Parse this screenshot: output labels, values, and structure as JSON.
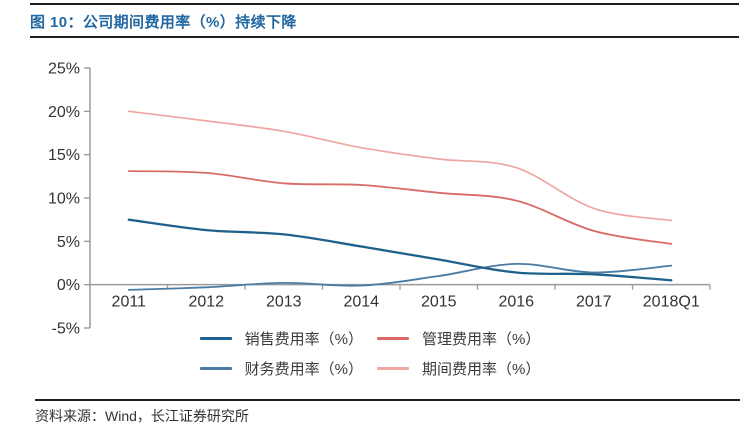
{
  "figure": {
    "title": "图 10：公司期间费用率（%）持续下降",
    "source": "资料来源：Wind，长江证券研究所"
  },
  "colors": {
    "title_blue": "#2368A2",
    "selling_blue": "#1F618C",
    "admin_red": "#D96A66",
    "finance_blue": "#4B7BA3",
    "period_pink": "#EEA7A3",
    "axis_gray": "#9A9A9A",
    "label_text": "#333333",
    "rule_dark": "#1F1F1F"
  },
  "chart_data": {
    "type": "line",
    "title": "公司期间费用率（%）持续下降",
    "categories": [
      "2011",
      "2012",
      "2013",
      "2014",
      "2015",
      "2016",
      "2017",
      "2018Q1"
    ],
    "series": [
      {
        "key": "selling",
        "name": "销售费用率（%）",
        "color": "#1F618C",
        "values": [
          7.5,
          6.3,
          5.8,
          4.4,
          2.9,
          1.4,
          1.2,
          0.5
        ]
      },
      {
        "key": "admin",
        "name": "管理费用率（%）",
        "color": "#D96A66",
        "values": [
          13.1,
          12.9,
          11.7,
          11.5,
          10.6,
          9.7,
          6.2,
          4.7
        ]
      },
      {
        "key": "finance",
        "name": "财务费用率（%）",
        "color": "#4B7BA3",
        "values": [
          -0.6,
          -0.3,
          0.2,
          -0.1,
          1.0,
          2.4,
          1.4,
          2.2
        ]
      },
      {
        "key": "period",
        "name": "期间费用率（%）",
        "color": "#EEA7A3",
        "values": [
          20.0,
          18.9,
          17.7,
          15.8,
          14.5,
          13.5,
          8.8,
          7.4
        ]
      }
    ],
    "xlabel": "",
    "ylabel": "",
    "ylim": [
      -5,
      25
    ],
    "yticks": [
      25,
      20,
      15,
      10,
      5,
      0,
      -5
    ],
    "ytick_labels": [
      "25%",
      "20%",
      "15%",
      "10%",
      "5%",
      "0%",
      "-5%"
    ],
    "grid": false,
    "smooth": true,
    "legend_position": "bottom",
    "legend_rows": [
      [
        "销售费用率（%）",
        "管理费用率（%）"
      ],
      [
        "财务费用率（%）",
        "期间费用率（%）"
      ]
    ]
  }
}
